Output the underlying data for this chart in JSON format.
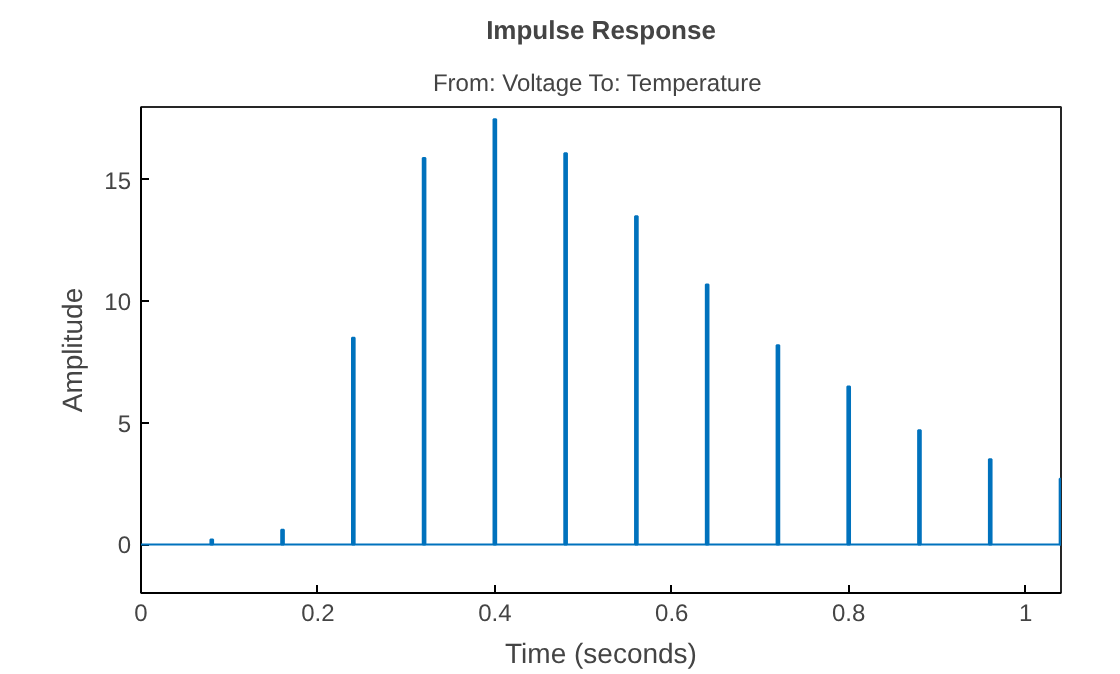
{
  "chart_data": {
    "type": "bar",
    "title": "Impulse Response",
    "subtitle": "From: Voltage  To: Temperature",
    "xlabel": "Time (seconds)",
    "ylabel": "Amplitude",
    "x": [
      0.08,
      0.16,
      0.24,
      0.32,
      0.4,
      0.48,
      0.56,
      0.64,
      0.72,
      0.8,
      0.88,
      0.96,
      1.04
    ],
    "series": [
      {
        "color": "#0072bd",
        "values": [
          0.2,
          0.6,
          8.5,
          15.9,
          17.5,
          16.1,
          13.5,
          10.7,
          8.2,
          6.5,
          4.7,
          3.5,
          2.7
        ]
      }
    ],
    "xlim": [
      0,
      1.04
    ],
    "ylim": [
      -2,
      18
    ],
    "xticks": [
      0,
      0.2,
      0.4,
      0.6,
      0.8,
      1
    ],
    "yticks": [
      0,
      5,
      10,
      15
    ],
    "ref_lines": [
      {
        "axis": "y",
        "value": 0,
        "color": "#0072bd"
      }
    ],
    "grid": false
  }
}
